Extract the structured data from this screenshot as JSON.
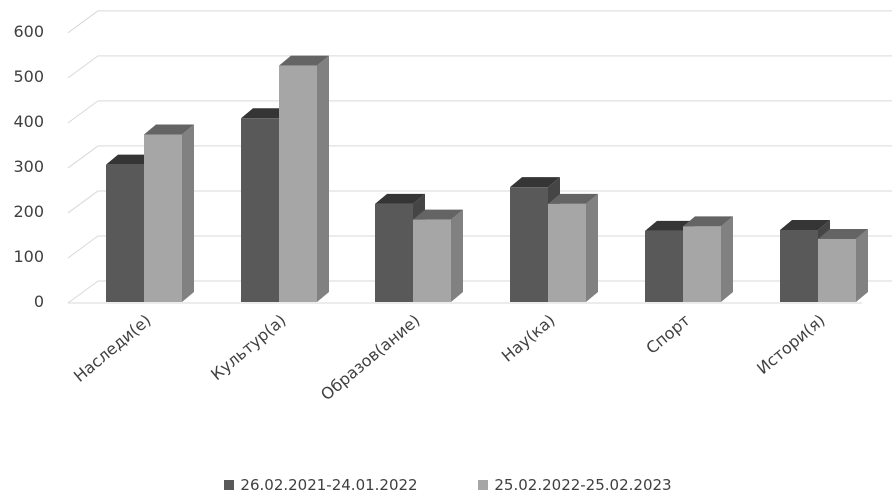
{
  "chart_data": {
    "type": "bar",
    "categories": [
      "Наследи(е)",
      "Культур(а)",
      "Образов(ание)",
      "Нау(ка)",
      "Спорт",
      "Истори(я)"
    ],
    "series": [
      {
        "name": "26.02.2021-24.01.2022",
        "values": [
          305,
          408,
          218,
          255,
          158,
          160
        ],
        "color": "#595959"
      },
      {
        "name": "25.02.2022-25.02.2023",
        "values": [
          372,
          525,
          183,
          218,
          168,
          140
        ],
        "color": "#a6a6a6"
      }
    ],
    "yticks": [
      "0",
      "100",
      "200",
      "300",
      "400",
      "500",
      "600"
    ],
    "ylim": [
      0,
      600
    ],
    "grid": true,
    "legend_position": "bottom",
    "style": "3d-clustered-column"
  }
}
